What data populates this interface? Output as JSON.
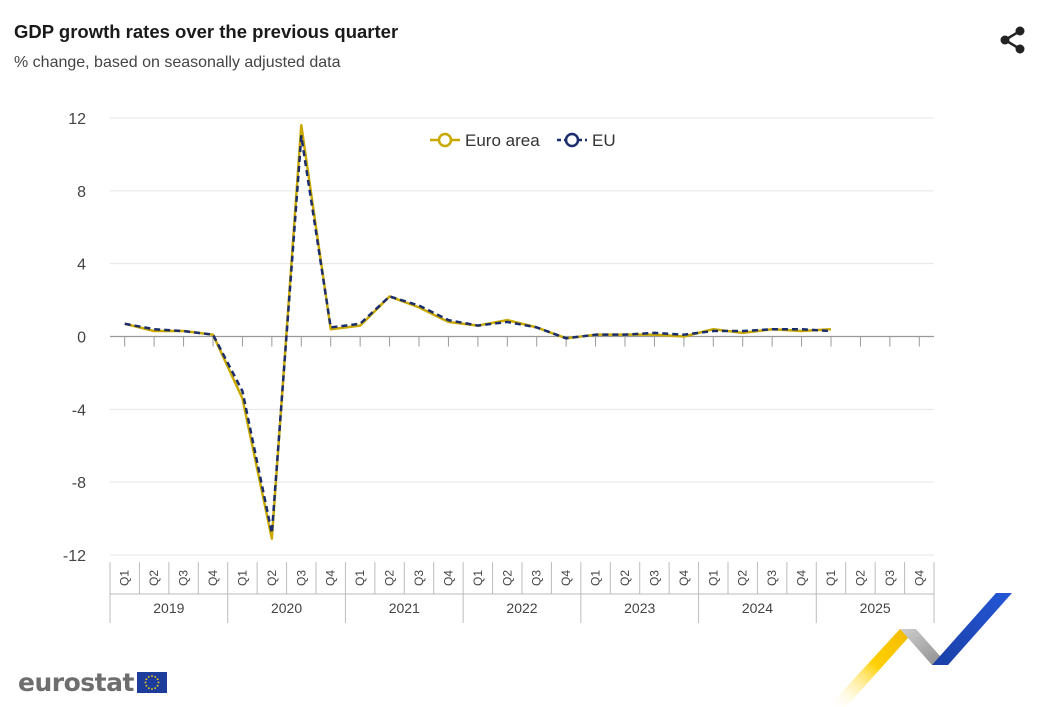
{
  "header": {
    "title": "GDP growth rates over the previous quarter",
    "subtitle": "% change, based on seasonally adjusted data",
    "share_icon": "share-icon"
  },
  "footer": {
    "brand": "eurostat",
    "flag_icon": "eu-flag-icon"
  },
  "colors": {
    "euro_area": "#c9a800",
    "eu": "#1b2e6b",
    "grid": "#e6e6e6",
    "axis": "#999999",
    "text": "#444444"
  },
  "chart_data": {
    "type": "line",
    "title": "GDP growth rates over the previous quarter",
    "subtitle": "% change, based on seasonally adjusted data",
    "xlabel": "",
    "ylabel": "",
    "ylim": [
      -12,
      12
    ],
    "yticks": [
      12,
      8,
      4,
      0,
      -4,
      -8,
      -12
    ],
    "grid": true,
    "legend_position": "top-center",
    "quarters": [
      "Q1",
      "Q2",
      "Q3",
      "Q4",
      "Q1",
      "Q2",
      "Q3",
      "Q4",
      "Q1",
      "Q2",
      "Q3",
      "Q4",
      "Q1",
      "Q2",
      "Q3",
      "Q4",
      "Q1",
      "Q2",
      "Q3",
      "Q4",
      "Q1",
      "Q2",
      "Q3",
      "Q4",
      "Q1",
      "Q2",
      "Q3",
      "Q4"
    ],
    "years": [
      "2019",
      "2020",
      "2021",
      "2022",
      "2023",
      "2024",
      "2025"
    ],
    "series": [
      {
        "name": "Euro area",
        "values": [
          0.7,
          0.3,
          0.3,
          0.1,
          -3.4,
          -11.1,
          11.6,
          0.4,
          0.6,
          2.2,
          1.6,
          0.8,
          0.6,
          0.9,
          0.5,
          -0.1,
          0.1,
          0.1,
          0.1,
          0.0,
          0.4,
          0.2,
          0.4,
          0.3,
          0.4,
          null,
          null,
          null
        ]
      },
      {
        "name": "EU",
        "values": [
          0.7,
          0.4,
          0.3,
          0.1,
          -3.0,
          -10.8,
          11.0,
          0.5,
          0.7,
          2.2,
          1.7,
          0.9,
          0.6,
          0.8,
          0.5,
          -0.1,
          0.1,
          0.1,
          0.2,
          0.1,
          0.3,
          0.3,
          0.4,
          0.4,
          0.3,
          null,
          null,
          null
        ]
      }
    ]
  }
}
